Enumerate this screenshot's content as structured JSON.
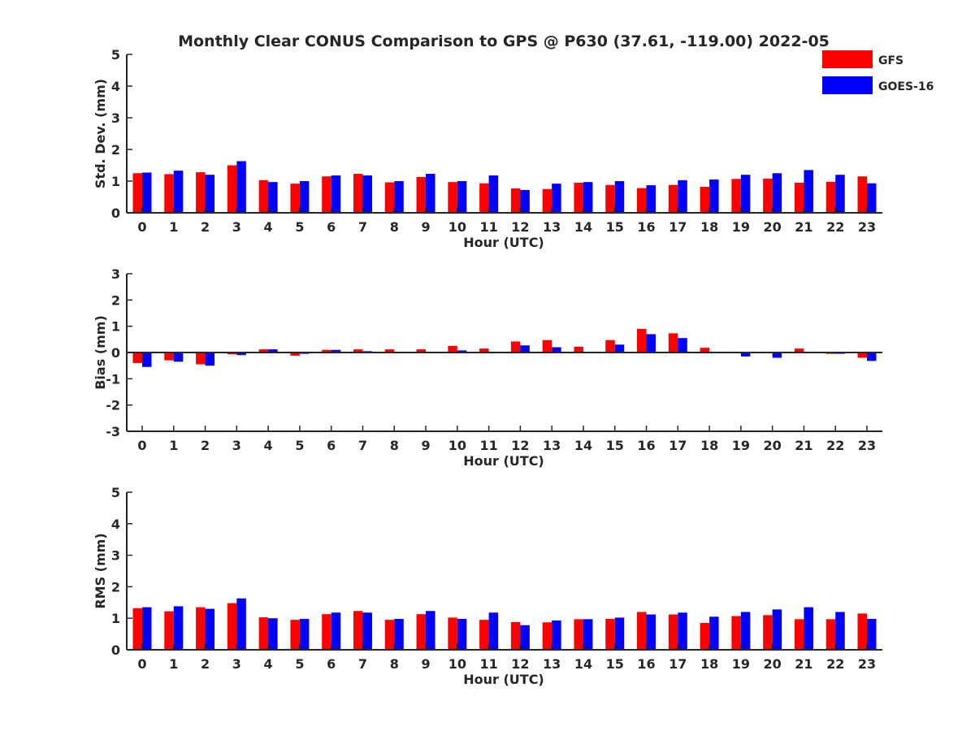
{
  "title": "Monthly Clear CONUS Comparison to GPS @ P630 (37.61, -119.00) 2022-05",
  "legend": {
    "position": "top-right",
    "entries": [
      {
        "name": "GFS",
        "color": "#ff0000"
      },
      {
        "name": "GOES-16",
        "color": "#0000ff"
      }
    ]
  },
  "colors": {
    "gfs": "#ff0000",
    "goes": "#0000ff",
    "axis": "#262626"
  },
  "chart_data": [
    {
      "type": "bar",
      "id": "std",
      "title": "Monthly Clear CONUS Comparison to GPS @ P630 (37.61, -119.00) 2022-05",
      "xlabel": "Hour (UTC)",
      "ylabel": "Std. Dev. (mm)",
      "ylim": [
        0,
        5
      ],
      "yticks": [
        "0",
        "1",
        "2",
        "3",
        "4",
        "5"
      ],
      "categories": [
        "0",
        "1",
        "2",
        "3",
        "4",
        "5",
        "6",
        "7",
        "8",
        "9",
        "10",
        "11",
        "12",
        "13",
        "14",
        "15",
        "16",
        "17",
        "18",
        "19",
        "20",
        "21",
        "22",
        "23"
      ],
      "series": [
        {
          "name": "GFS",
          "values": [
            1.25,
            1.22,
            1.28,
            1.5,
            1.03,
            0.92,
            1.15,
            1.23,
            0.96,
            1.13,
            0.97,
            0.93,
            0.77,
            0.75,
            0.95,
            0.88,
            0.78,
            0.88,
            0.82,
            1.07,
            1.08,
            0.95,
            0.98,
            1.15
          ]
        },
        {
          "name": "GOES-16",
          "values": [
            1.27,
            1.33,
            1.2,
            1.63,
            0.97,
            1.0,
            1.18,
            1.18,
            1.0,
            1.23,
            1.0,
            1.18,
            0.72,
            0.92,
            0.97,
            1.0,
            0.87,
            1.03,
            1.05,
            1.2,
            1.25,
            1.35,
            1.2,
            0.93
          ]
        }
      ]
    },
    {
      "type": "bar",
      "id": "bias",
      "xlabel": "Hour (UTC)",
      "ylabel": "Bias (mm)",
      "ylim": [
        -3,
        3
      ],
      "yticks": [
        "-3",
        "-2",
        "-1",
        "0",
        "1",
        "2",
        "3"
      ],
      "categories": [
        "0",
        "1",
        "2",
        "3",
        "4",
        "5",
        "6",
        "7",
        "8",
        "9",
        "10",
        "11",
        "12",
        "13",
        "14",
        "15",
        "16",
        "17",
        "18",
        "19",
        "20",
        "21",
        "22",
        "23"
      ],
      "series": [
        {
          "name": "GFS",
          "values": [
            -0.4,
            -0.3,
            -0.45,
            -0.07,
            0.12,
            -0.12,
            0.1,
            0.12,
            0.12,
            0.12,
            0.25,
            0.15,
            0.42,
            0.47,
            0.22,
            0.47,
            0.9,
            0.73,
            0.18,
            0.0,
            0.03,
            0.15,
            -0.05,
            -0.2
          ]
        },
        {
          "name": "GOES-16",
          "values": [
            -0.55,
            -0.35,
            -0.5,
            -0.1,
            0.12,
            -0.05,
            0.1,
            0.05,
            0.0,
            0.0,
            0.08,
            -0.03,
            0.27,
            0.2,
            0.0,
            0.3,
            0.7,
            0.55,
            0.0,
            -0.15,
            -0.2,
            0.0,
            -0.05,
            -0.32
          ]
        }
      ]
    },
    {
      "type": "bar",
      "id": "rms",
      "xlabel": "Hour (UTC)",
      "ylabel": "RMS (mm)",
      "ylim": [
        0,
        5
      ],
      "yticks": [
        "0",
        "1",
        "2",
        "3",
        "4",
        "5"
      ],
      "categories": [
        "0",
        "1",
        "2",
        "3",
        "4",
        "5",
        "6",
        "7",
        "8",
        "9",
        "10",
        "11",
        "12",
        "13",
        "14",
        "15",
        "16",
        "17",
        "18",
        "19",
        "20",
        "21",
        "22",
        "23"
      ],
      "series": [
        {
          "name": "GFS",
          "values": [
            1.32,
            1.22,
            1.35,
            1.48,
            1.03,
            0.95,
            1.13,
            1.23,
            0.95,
            1.13,
            1.02,
            0.95,
            0.88,
            0.87,
            0.97,
            0.98,
            1.2,
            1.12,
            0.85,
            1.07,
            1.1,
            0.97,
            0.97,
            1.15
          ]
        },
        {
          "name": "GOES-16",
          "values": [
            1.35,
            1.38,
            1.3,
            1.63,
            1.0,
            0.98,
            1.18,
            1.18,
            0.98,
            1.23,
            0.98,
            1.18,
            0.78,
            0.93,
            0.97,
            1.02,
            1.12,
            1.18,
            1.05,
            1.2,
            1.28,
            1.35,
            1.2,
            0.98
          ]
        }
      ]
    }
  ]
}
